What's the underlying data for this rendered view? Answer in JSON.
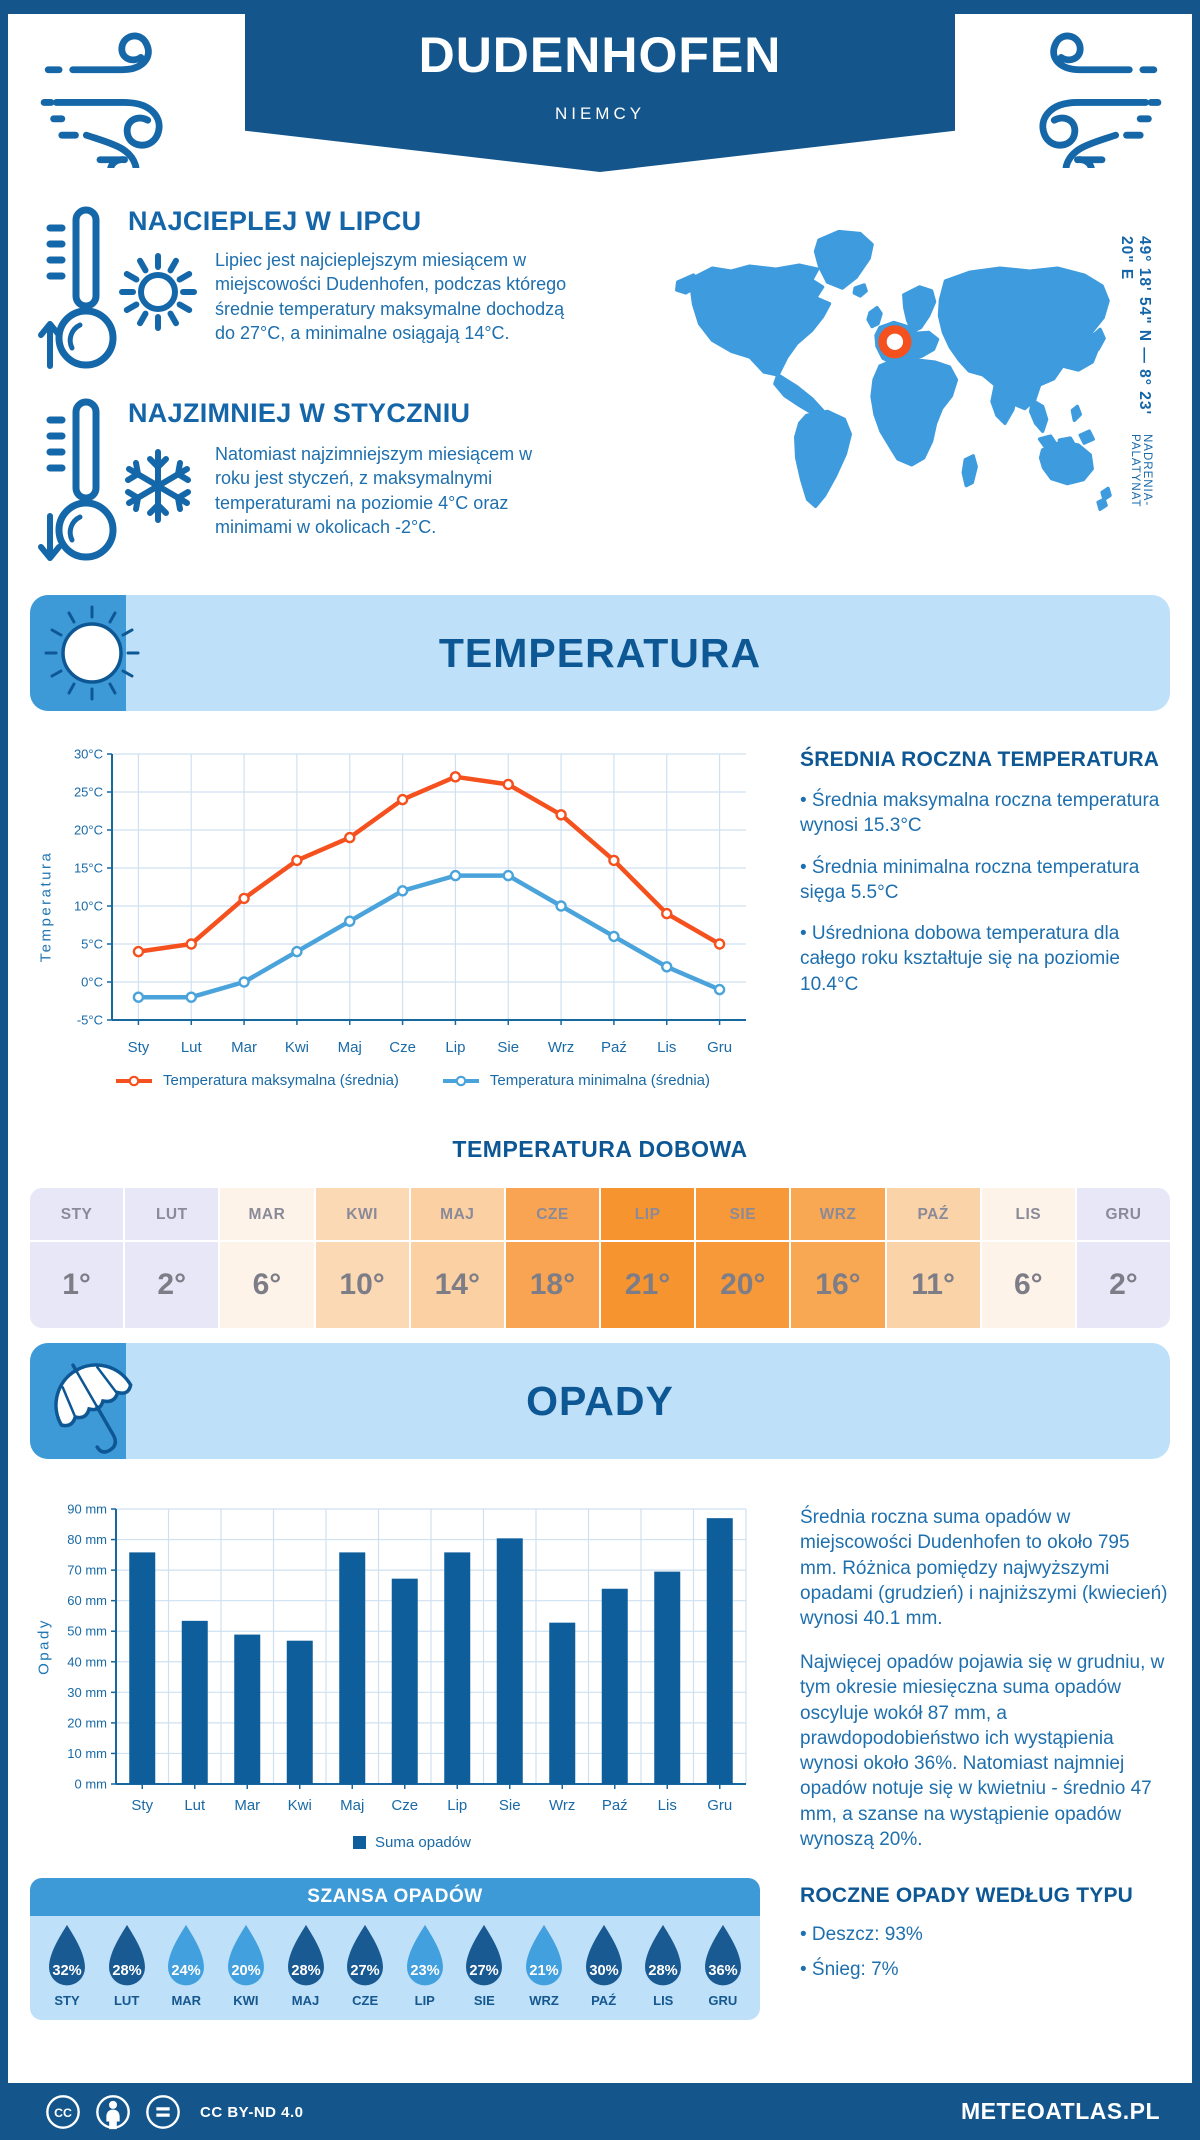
{
  "header": {
    "title": "DUDENHOFEN",
    "subtitle": "NIEMCY",
    "coordinates": "49° 18' 54\" N — 8° 23' 20\" E",
    "region": "NADRENIA-PALATYNAT"
  },
  "intro": {
    "warm": {
      "title": "NAJCIEPLEJ W LIPCU",
      "text": "Lipiec jest najcieplejszym miesiącem w miejscowości Dudenhofen, podczas którego średnie temperatury maksymalne dochodzą do 27°C, a minimalne osiągają 14°C."
    },
    "cold": {
      "title": "NAJZIMNIEJ W STYCZNIU",
      "text": "Natomiast najzimniejszym miesiącem w roku jest styczeń, z maksymalnymi temperaturami na poziomie 4°C oraz minimami w okolicach -2°C."
    }
  },
  "temperature": {
    "banner_title": "TEMPERATURA",
    "annual_heading": "ŚREDNIA ROCZNA TEMPERATURA",
    "annual_bullets": [
      "• Średnia maksymalna roczna temperatura wynosi 15.3°C",
      "• Średnia minimalna roczna temperatura sięga 5.5°C",
      "• Uśredniona dobowa temperatura dla całego roku kształtuje się na poziomie 10.4°C"
    ],
    "daily_heading": "TEMPERATURA DOBOWA",
    "daily_months": [
      "STY",
      "LUT",
      "MAR",
      "KWI",
      "MAJ",
      "CZE",
      "LIP",
      "SIE",
      "WRZ",
      "PAŹ",
      "LIS",
      "GRU"
    ],
    "daily_values": [
      "1°",
      "2°",
      "6°",
      "10°",
      "14°",
      "18°",
      "21°",
      "20°",
      "16°",
      "11°",
      "6°",
      "2°"
    ],
    "daily_colors": [
      "#e7e7f8",
      "#e7e7f8",
      "#fdf3e8",
      "#fbd9b5",
      "#fbd0a2",
      "#f8a452",
      "#f6952f",
      "#f79939",
      "#f8a853",
      "#fbd3a8",
      "#fdf3e8",
      "#e7e7f8"
    ]
  },
  "precipitation": {
    "banner_title": "OPADY",
    "paragraphs": [
      "Średnia roczna suma opadów w miejscowości Dudenhofen to około 795 mm. Różnica pomiędzy najwyższymi opadami (grudzień) i najniższymi (kwiecień) wynosi 40.1 mm.",
      "Najwięcej opadów pojawia się w grudniu, w tym okresie miesięczna suma opadów oscyluje wokół 87 mm, a prawdopodobieństwo ich wystąpienia wynosi około 36%. Natomiast najmniej opadów notuje się w kwietniu - średnio 47 mm, a szanse na wystąpienie opadów wynoszą 20%."
    ],
    "type_heading": "ROCZNE OPADY WEDŁUG TYPU",
    "type_bullets": [
      "• Deszcz: 93%",
      "• Śnieg: 7%"
    ],
    "chance_heading": "SZANSA OPADÓW",
    "chance_months": [
      "STY",
      "LUT",
      "MAR",
      "KWI",
      "MAJ",
      "CZE",
      "LIP",
      "SIE",
      "WRZ",
      "PAŹ",
      "LIS",
      "GRU"
    ],
    "chance_values": [
      "32%",
      "28%",
      "24%",
      "20%",
      "28%",
      "27%",
      "23%",
      "27%",
      "21%",
      "30%",
      "28%",
      "36%"
    ],
    "chance_dark": [
      true,
      true,
      false,
      false,
      true,
      true,
      false,
      true,
      false,
      true,
      true,
      true
    ]
  },
  "chart_data": [
    {
      "type": "line",
      "title": "Temperatura",
      "categories": [
        "Sty",
        "Lut",
        "Mar",
        "Kwi",
        "Maj",
        "Cze",
        "Lip",
        "Sie",
        "Wrz",
        "Paź",
        "Lis",
        "Gru"
      ],
      "series": [
        {
          "name": "Temperatura maksymalna (średnia)",
          "color": "#f4511e",
          "values": [
            4,
            5,
            11,
            16,
            19,
            24,
            27,
            26,
            22,
            16,
            9,
            5
          ]
        },
        {
          "name": "Temperatura minimalna (średnia)",
          "color": "#4ba3db",
          "values": [
            -2,
            -2,
            0,
            4,
            8,
            12,
            14,
            14,
            10,
            6,
            2,
            -1
          ]
        }
      ],
      "xlabel": "",
      "ylabel": "Temperatura",
      "ylim": [
        -5,
        30
      ],
      "ytick_step": 5,
      "ytick_suffix": "°C",
      "grid": true,
      "legend_position": "bottom"
    },
    {
      "type": "bar",
      "title": "Opady",
      "categories": [
        "Sty",
        "Lut",
        "Mar",
        "Kwi",
        "Maj",
        "Cze",
        "Lip",
        "Sie",
        "Wrz",
        "Paź",
        "Lis",
        "Gru"
      ],
      "series": [
        {
          "name": "Suma opadów",
          "color": "#0f5e9c",
          "values": [
            75.8,
            53.4,
            48.9,
            46.9,
            75.8,
            67.2,
            75.8,
            80.4,
            52.8,
            63.9,
            69.5,
            87
          ]
        }
      ],
      "xlabel": "",
      "ylabel": "Opady",
      "ylim": [
        0,
        90
      ],
      "ytick_step": 10,
      "ytick_suffix": " mm",
      "grid": true,
      "legend_position": "bottom"
    }
  ],
  "footer": {
    "license": "CC BY-ND 4.0",
    "brand": "METEOATLAS.PL"
  },
  "colors": {
    "primary": "#14568c",
    "heading": "#0d5795",
    "body_text": "#1e6fae",
    "banner_bg": "#bee0f8",
    "banner_accent": "#3e9ad6",
    "map_blue": "#3d9bde",
    "marker_orange": "#f4511e",
    "max_line": "#f4511e",
    "min_line": "#4ba3db",
    "bar": "#0f5e9c",
    "drop_dark": "#1a5a92",
    "drop_light": "#42a0de"
  }
}
